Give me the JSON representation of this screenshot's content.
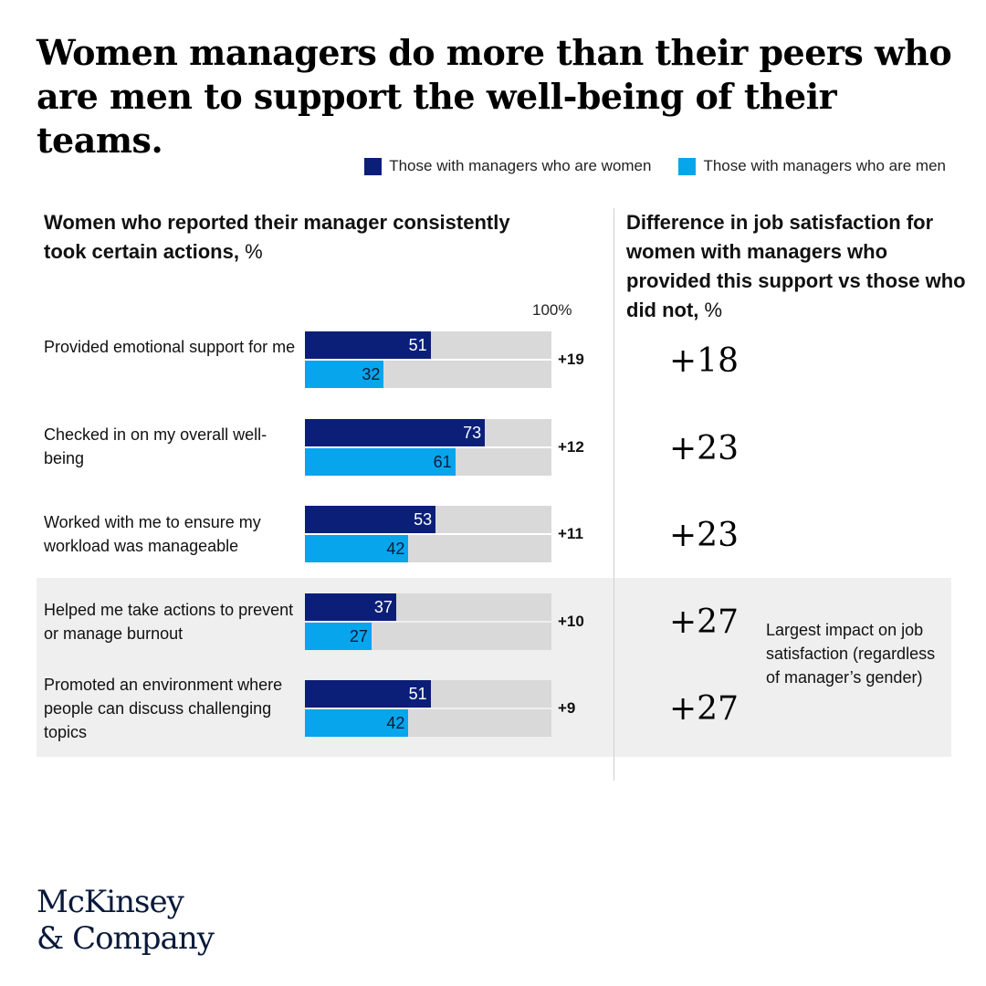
{
  "title": "Women managers do more than their peers who are men to support the well-being of their teams.",
  "colors": {
    "women": "#0b1f79",
    "men": "#07a5ec",
    "track": "#d9d9d9",
    "highlight": "#efefef"
  },
  "legend": {
    "women_label": "Those with managers who are women",
    "men_label": "Those with managers who are men"
  },
  "left_panel": {
    "title": "Women who reported their manager consistently took certain actions,",
    "unit": "%",
    "scale_label": "100%"
  },
  "right_panel": {
    "title": "Difference in job satisfaction for women with managers who provided this support vs those who did not,",
    "unit": "%",
    "note": "Largest impact on job satisfaction (regardless of manager’s gender)"
  },
  "chart_data": {
    "type": "bar",
    "orientation": "horizontal",
    "xlim": [
      0,
      100
    ],
    "categories": [
      "Provided emotional support for me",
      "Checked in on my overall well-being",
      "Worked with me to ensure my workload was manageable",
      "Helped me take actions to prevent or manage burnout",
      "Promoted an environment where people can discuss challenging topics"
    ],
    "series": [
      {
        "name": "Those with managers who are women",
        "values": [
          51,
          73,
          53,
          37,
          51
        ]
      },
      {
        "name": "Those with managers who are men",
        "values": [
          32,
          61,
          42,
          27,
          42
        ]
      }
    ],
    "differences": [
      "+19",
      "+12",
      "+11",
      "+10",
      "+9"
    ],
    "job_satisfaction_difference": [
      "+18",
      "+23",
      "+23",
      "+27",
      "+27"
    ],
    "highlighted_rows": [
      3,
      4
    ]
  },
  "logo": {
    "line1": "McKinsey",
    "line2": "& Company"
  }
}
